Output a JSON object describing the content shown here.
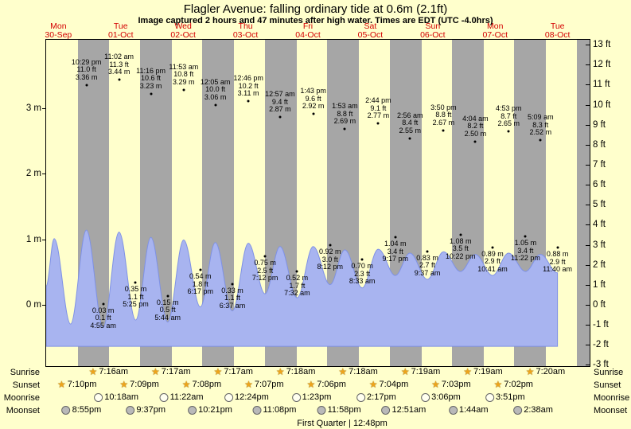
{
  "header": {
    "title": "Flagler Avenue: falling ordinary tide at 0.6m (2.1ft)",
    "subtitle": "Image captured 2 hours and 47 minutes after high water. Times are EDT (UTC -4.0hrs)"
  },
  "colors": {
    "background": "#ffffcc",
    "night_band": "#a6a6a6",
    "tide_fill": "#a8b4f0",
    "tide_stroke": "#7e91e6",
    "day_label_red": "#d40000",
    "text": "#000000"
  },
  "chart_data": {
    "type": "area",
    "title": "Flagler Avenue: falling ordinary tide at 0.6m (2.1ft)",
    "subtitle": "Image captured 2 hours and 47 minutes after high water. Times are EDT (UTC -4.0hrs)",
    "x_axis_days": [
      {
        "name": "Mon",
        "date": "30-Sep"
      },
      {
        "name": "Tue",
        "date": "01-Oct"
      },
      {
        "name": "Wed",
        "date": "02-Oct"
      },
      {
        "name": "Thu",
        "date": "03-Oct"
      },
      {
        "name": "Fri",
        "date": "04-Oct"
      },
      {
        "name": "Sat",
        "date": "05-Oct"
      },
      {
        "name": "Sun",
        "date": "06-Oct"
      },
      {
        "name": "Mon",
        "date": "07-Oct"
      },
      {
        "name": "Tue",
        "date": "08-Oct"
      }
    ],
    "y_axis_left_meters": [
      3,
      2,
      1,
      0
    ],
    "y_axis_right_feet": [
      13,
      12,
      11,
      10,
      9,
      8,
      7,
      6,
      5,
      4,
      3,
      2,
      1,
      0,
      -1,
      -2,
      -3
    ],
    "high_tides": [
      {
        "day": 0,
        "time": "10:29 pm",
        "height_ft": "11.0 ft",
        "height_m": "3.36 m"
      },
      {
        "day": 1,
        "time": "11:02 am",
        "height_ft": "11.3 ft",
        "height_m": "3.44 m"
      },
      {
        "day": 1,
        "time": "11:16 pm",
        "height_ft": "10.6 ft",
        "height_m": "3.23 m"
      },
      {
        "day": 2,
        "time": "11:53 am",
        "height_ft": "10.8 ft",
        "height_m": "3.29 m"
      },
      {
        "day": 3,
        "time": "12:05 am",
        "height_ft": "10.0 ft",
        "height_m": "3.06 m"
      },
      {
        "day": 3,
        "time": "12:46 pm",
        "height_ft": "10.2 ft",
        "height_m": "3.11 m"
      },
      {
        "day": 4,
        "time": "12:57 am",
        "height_ft": "9.4 ft",
        "height_m": "2.87 m"
      },
      {
        "day": 4,
        "time": "1:43 pm",
        "height_ft": "9.6 ft",
        "height_m": "2.92 m"
      },
      {
        "day": 5,
        "time": "1:53 am",
        "height_ft": "8.8 ft",
        "height_m": "2.69 m"
      },
      {
        "day": 5,
        "time": "2:44 pm",
        "height_ft": "9.1 ft",
        "height_m": "2.77 m"
      },
      {
        "day": 6,
        "time": "2:56 am",
        "height_ft": "8.4 ft",
        "height_m": "2.55 m"
      },
      {
        "day": 6,
        "time": "3:50 pm",
        "height_ft": "8.8 ft",
        "height_m": "2.67 m"
      },
      {
        "day": 7,
        "time": "4:04 am",
        "height_ft": "8.2 ft",
        "height_m": "2.50 m"
      },
      {
        "day": 7,
        "time": "4:53 pm",
        "height_ft": "8.7 ft",
        "height_m": "2.65 m"
      },
      {
        "day": 8,
        "time": "5:09 am",
        "height_ft": "8.3 ft",
        "height_m": "2.52 m"
      }
    ],
    "low_tides": [
      {
        "day": 1,
        "time": "4:55 am",
        "height_ft": "0.1 ft",
        "height_m": "0.03 m"
      },
      {
        "day": 1,
        "time": "5:25 pm",
        "height_ft": "1.1 ft",
        "height_m": "0.35 m"
      },
      {
        "day": 2,
        "time": "5:44 am",
        "height_ft": "0.5 ft",
        "height_m": "0.15 m"
      },
      {
        "day": 2,
        "time": "6:17 pm",
        "height_ft": "1.8 ft",
        "height_m": "0.54 m"
      },
      {
        "day": 3,
        "time": "6:37 am",
        "height_ft": "1.1 ft",
        "height_m": "0.33 m"
      },
      {
        "day": 3,
        "time": "7:12 pm",
        "height_ft": "2.5 ft",
        "height_m": "0.75 m"
      },
      {
        "day": 4,
        "time": "7:32 am",
        "height_ft": "1.7 ft",
        "height_m": "0.52 m"
      },
      {
        "day": 4,
        "time": "8:12 pm",
        "height_ft": "3.0 ft",
        "height_m": "0.92 m"
      },
      {
        "day": 5,
        "time": "8:33 am",
        "height_ft": "2.3 ft",
        "height_m": "0.70 m"
      },
      {
        "day": 5,
        "time": "9:17 pm",
        "height_ft": "3.4 ft",
        "height_m": "1.04 m"
      },
      {
        "day": 6,
        "time": "9:37 am",
        "height_ft": "2.7 ft",
        "height_m": "0.83 m"
      },
      {
        "day": 6,
        "time": "10:22 pm",
        "height_ft": "3.5 ft",
        "height_m": "1.08 m"
      },
      {
        "day": 7,
        "time": "10:41 am",
        "height_ft": "2.9 ft",
        "height_m": "0.89 m"
      },
      {
        "day": 7,
        "time": "11:22 pm",
        "height_ft": "3.4 ft",
        "height_m": "1.05 m"
      },
      {
        "day": 8,
        "time": "11:40 am",
        "height_ft": "2.9 ft",
        "height_m": "0.88 m"
      }
    ],
    "display_curve": {
      "note": "tide curve as drawn (display scale, meters vs hours from Mon 00:00)",
      "points": [
        [
          7,
          0.3
        ],
        [
          10.1,
          1.02
        ],
        [
          16.4,
          -0.28
        ],
        [
          22.48,
          1.15
        ],
        [
          28.92,
          -0.33
        ],
        [
          35.03,
          1.12
        ],
        [
          41.42,
          -0.22
        ],
        [
          47.27,
          1.04
        ],
        [
          53.73,
          -0.25
        ],
        [
          59.88,
          1.0
        ],
        [
          66.28,
          -0.02
        ],
        [
          72.08,
          0.96
        ],
        [
          78.62,
          -0.08
        ],
        [
          84.77,
          0.95
        ],
        [
          91.2,
          0.18
        ],
        [
          96.95,
          0.9
        ],
        [
          103.53,
          0.12
        ],
        [
          109.72,
          0.9
        ],
        [
          116.2,
          0.32
        ],
        [
          121.88,
          0.85
        ],
        [
          128.55,
          0.27
        ],
        [
          134.73,
          0.86
        ],
        [
          141.28,
          0.46
        ],
        [
          146.93,
          0.8
        ],
        [
          153.62,
          0.4
        ],
        [
          159.83,
          0.82
        ],
        [
          166.37,
          0.52
        ],
        [
          172.07,
          0.78
        ],
        [
          178.68,
          0.46
        ],
        [
          184.88,
          0.8
        ],
        [
          191.37,
          0.52
        ],
        [
          197.15,
          0.78
        ],
        [
          203.67,
          0.5
        ]
      ]
    },
    "sun_moon": {
      "sunrise": {
        "label": "Sunrise",
        "icon": "sunrise-star-icon",
        "events": [
          {
            "day": 1,
            "time": "7:16am"
          },
          {
            "day": 2,
            "time": "7:17am"
          },
          {
            "day": 3,
            "time": "7:17am"
          },
          {
            "day": 4,
            "time": "7:18am"
          },
          {
            "day": 5,
            "time": "7:18am"
          },
          {
            "day": 6,
            "time": "7:19am"
          },
          {
            "day": 7,
            "time": "7:19am"
          },
          {
            "day": 8,
            "time": "7:20am"
          }
        ]
      },
      "sunset": {
        "label": "Sunset",
        "icon": "sunset-star-icon",
        "events": [
          {
            "day": 0,
            "time": "7:10pm"
          },
          {
            "day": 1,
            "time": "7:09pm"
          },
          {
            "day": 2,
            "time": "7:08pm"
          },
          {
            "day": 3,
            "time": "7:07pm"
          },
          {
            "day": 4,
            "time": "7:06pm"
          },
          {
            "day": 5,
            "time": "7:04pm"
          },
          {
            "day": 6,
            "time": "7:03pm"
          },
          {
            "day": 7,
            "time": "7:02pm"
          }
        ]
      },
      "moonrise": {
        "label": "Moonrise",
        "icon": "moonrise-circle-icon",
        "events": [
          {
            "day": 1,
            "time": "10:18am"
          },
          {
            "day": 2,
            "time": "11:22am"
          },
          {
            "day": 3,
            "time": "12:24pm"
          },
          {
            "day": 4,
            "time": "1:23pm"
          },
          {
            "day": 5,
            "time": "2:17pm"
          },
          {
            "day": 6,
            "time": "3:06pm"
          },
          {
            "day": 7,
            "time": "3:51pm"
          }
        ]
      },
      "moonset": {
        "label": "Moonset",
        "icon": "moonset-circle-icon",
        "events": [
          {
            "day": 0,
            "time": "8:55pm"
          },
          {
            "day": 1,
            "time": "9:37pm"
          },
          {
            "day": 2,
            "time": "10:21pm"
          },
          {
            "day": 3,
            "time": "11:08pm"
          },
          {
            "day": 4,
            "time": "11:58pm"
          },
          {
            "day": 6,
            "time": "12:51am"
          },
          {
            "day": 7,
            "time": "1:44am"
          },
          {
            "day": 8,
            "time": "2:38am"
          }
        ]
      },
      "moon_phase": "First Quarter | 12:48pm"
    }
  }
}
